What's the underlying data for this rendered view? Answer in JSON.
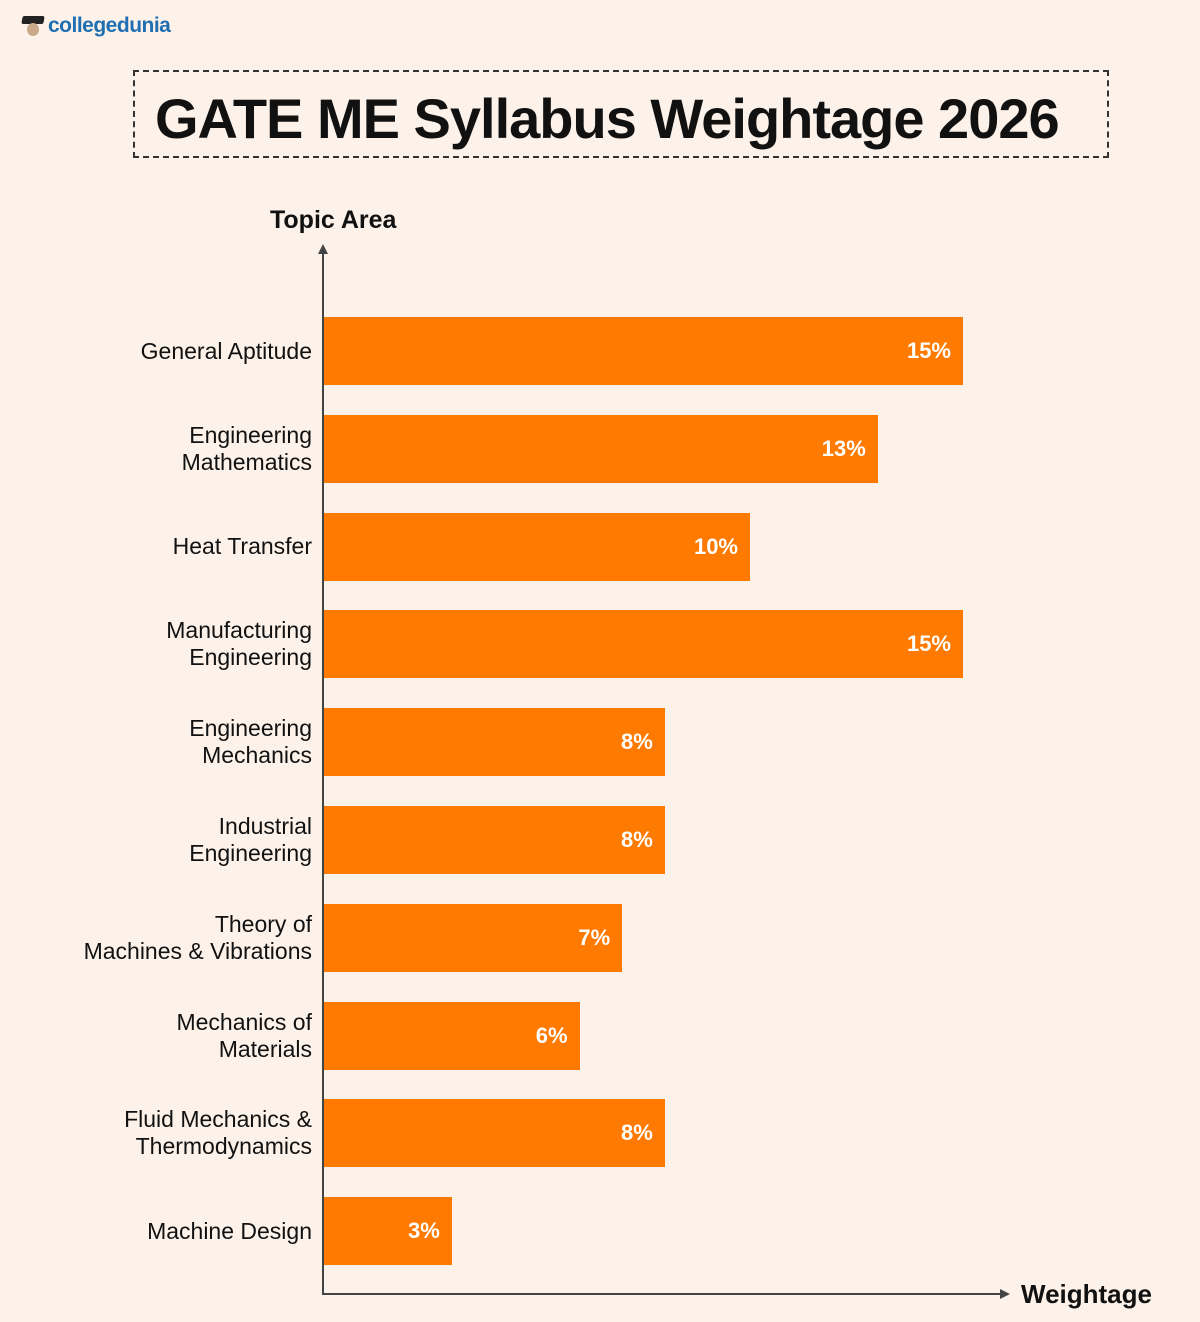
{
  "logo": {
    "text": "collegedunia"
  },
  "chart_data": {
    "type": "bar",
    "orientation": "horizontal",
    "title": "GATE ME Syllabus Weightage 2026",
    "ylabel": "Topic Area",
    "xlabel": "Weightage",
    "categories": [
      "General Aptitude",
      "Engineering\nMathematics",
      "Heat Transfer",
      "Manufacturing\nEngineering",
      "Engineering\nMechanics",
      "Industrial\nEngineering",
      "Theory of\nMachines & Vibrations",
      "Mechanics of\nMaterials",
      "Fluid Mechanics &\nThermodynamics",
      "Machine Design"
    ],
    "values": [
      15,
      13,
      10,
      15,
      8,
      8,
      7,
      6,
      8,
      3
    ],
    "data_labels": [
      "15%",
      "13%",
      "10%",
      "15%",
      "8%",
      "8%",
      "7%",
      "6%",
      "8%",
      "3%"
    ],
    "unit": "%",
    "grid": false,
    "bar_color": "#ff7a00",
    "background_color": "#fdf2e9"
  }
}
